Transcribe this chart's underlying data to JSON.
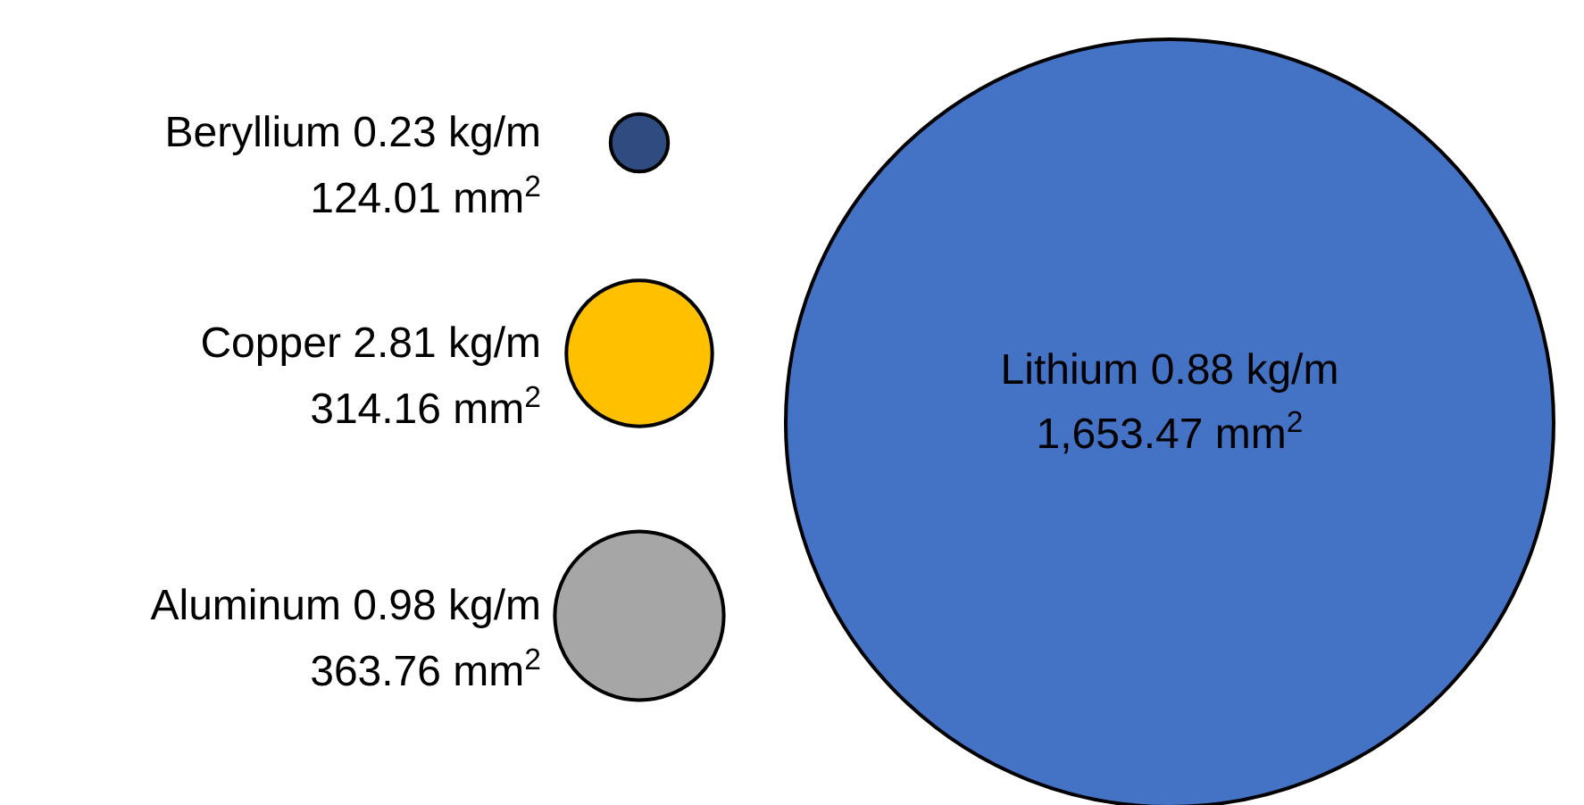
{
  "chart_data": {
    "type": "other",
    "categories": [
      "Beryllium",
      "Copper",
      "Aluminum",
      "Lithium"
    ],
    "colors": [
      "#2f4b80",
      "#ffc000",
      "#a6a6a6",
      "#4472c4"
    ],
    "data_labels": true,
    "series": [
      {
        "values": [
          0.23,
          2.81,
          0.98,
          0.88
        ],
        "value_labels": [
          "0.23 kg/m",
          "2.81 kg/m",
          "0.98 kg/m",
          "0.88 kg/m"
        ]
      },
      {
        "values": [
          124.01,
          314.16,
          363.76,
          1653.47
        ],
        "value_labels": [
          "124.01 mm$^{2}$",
          "314.16 mm$^{2}$",
          "363.76 mm$^{2}$",
          "1,653.47 mm$^{2}$"
        ]
      }
    ]
  }
}
